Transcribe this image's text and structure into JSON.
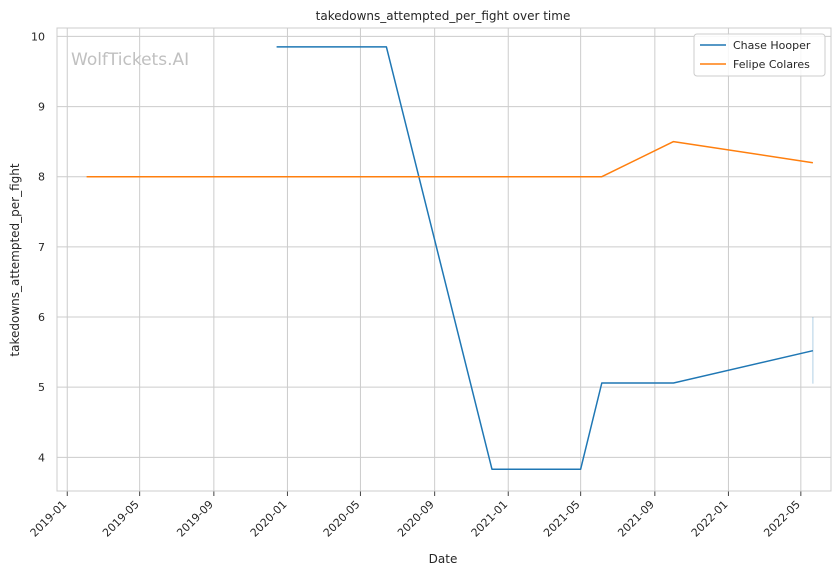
{
  "chart_data": {
    "type": "line",
    "title": "takedowns_attempted_per_fight over time",
    "xlabel": "Date",
    "ylabel": "takedowns_attempted_per_fight",
    "watermark": "WolfTickets.AI",
    "xlim": [
      "2018-12-15",
      "2022-06-20"
    ],
    "ylim": [
      3.52,
      10.12
    ],
    "x_ticks": [
      "2019-01",
      "2019-05",
      "2019-09",
      "2020-01",
      "2020-05",
      "2020-09",
      "2021-01",
      "2021-05",
      "2021-09",
      "2022-01",
      "2022-05"
    ],
    "y_ticks": [
      4,
      5,
      6,
      7,
      8,
      9,
      10
    ],
    "grid": true,
    "legend_position": "top-right",
    "colors": {
      "Chase Hooper": "#1f77b4",
      "Felipe Colares": "#ff7f0e"
    },
    "series": [
      {
        "name": "Chase Hooper",
        "x": [
          "2019-12-14",
          "2020-06-13",
          "2020-12-05",
          "2021-05-01",
          "2021-06-05",
          "2021-10-02",
          "2022-05-21"
        ],
        "y": [
          9.85,
          9.85,
          3.83,
          3.83,
          5.06,
          5.06,
          5.52
        ]
      },
      {
        "name": "Felipe Colares",
        "x": [
          "2019-02-02",
          "2021-06-05",
          "2021-10-02",
          "2022-05-21"
        ],
        "y": [
          8.0,
          8.0,
          8.5,
          8.2
        ]
      }
    ]
  }
}
